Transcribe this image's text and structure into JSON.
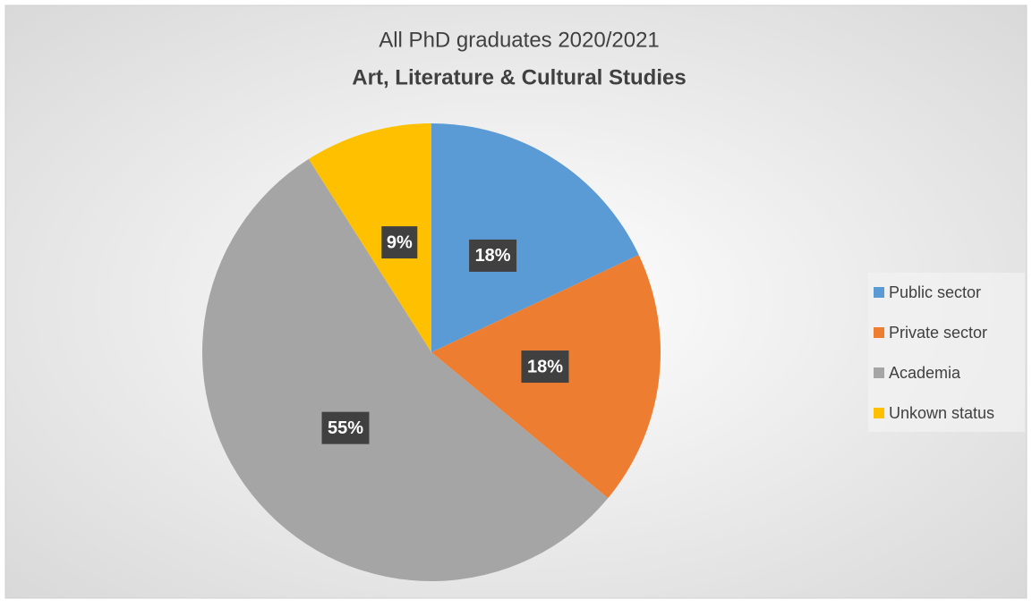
{
  "chart_data": {
    "type": "pie",
    "title": "All PhD graduates 2020/2021",
    "subtitle": "Art, Literature & Cultural Studies",
    "categories": [
      "Public sector",
      "Private sector",
      "Academia",
      "Unkown status"
    ],
    "values": [
      18,
      18,
      55,
      9
    ],
    "value_labels": [
      "18%",
      "18%",
      "55%",
      "9%"
    ],
    "colors": [
      "#5b9bd5",
      "#ed7d31",
      "#a5a5a5",
      "#ffc000"
    ],
    "legend": "right"
  }
}
